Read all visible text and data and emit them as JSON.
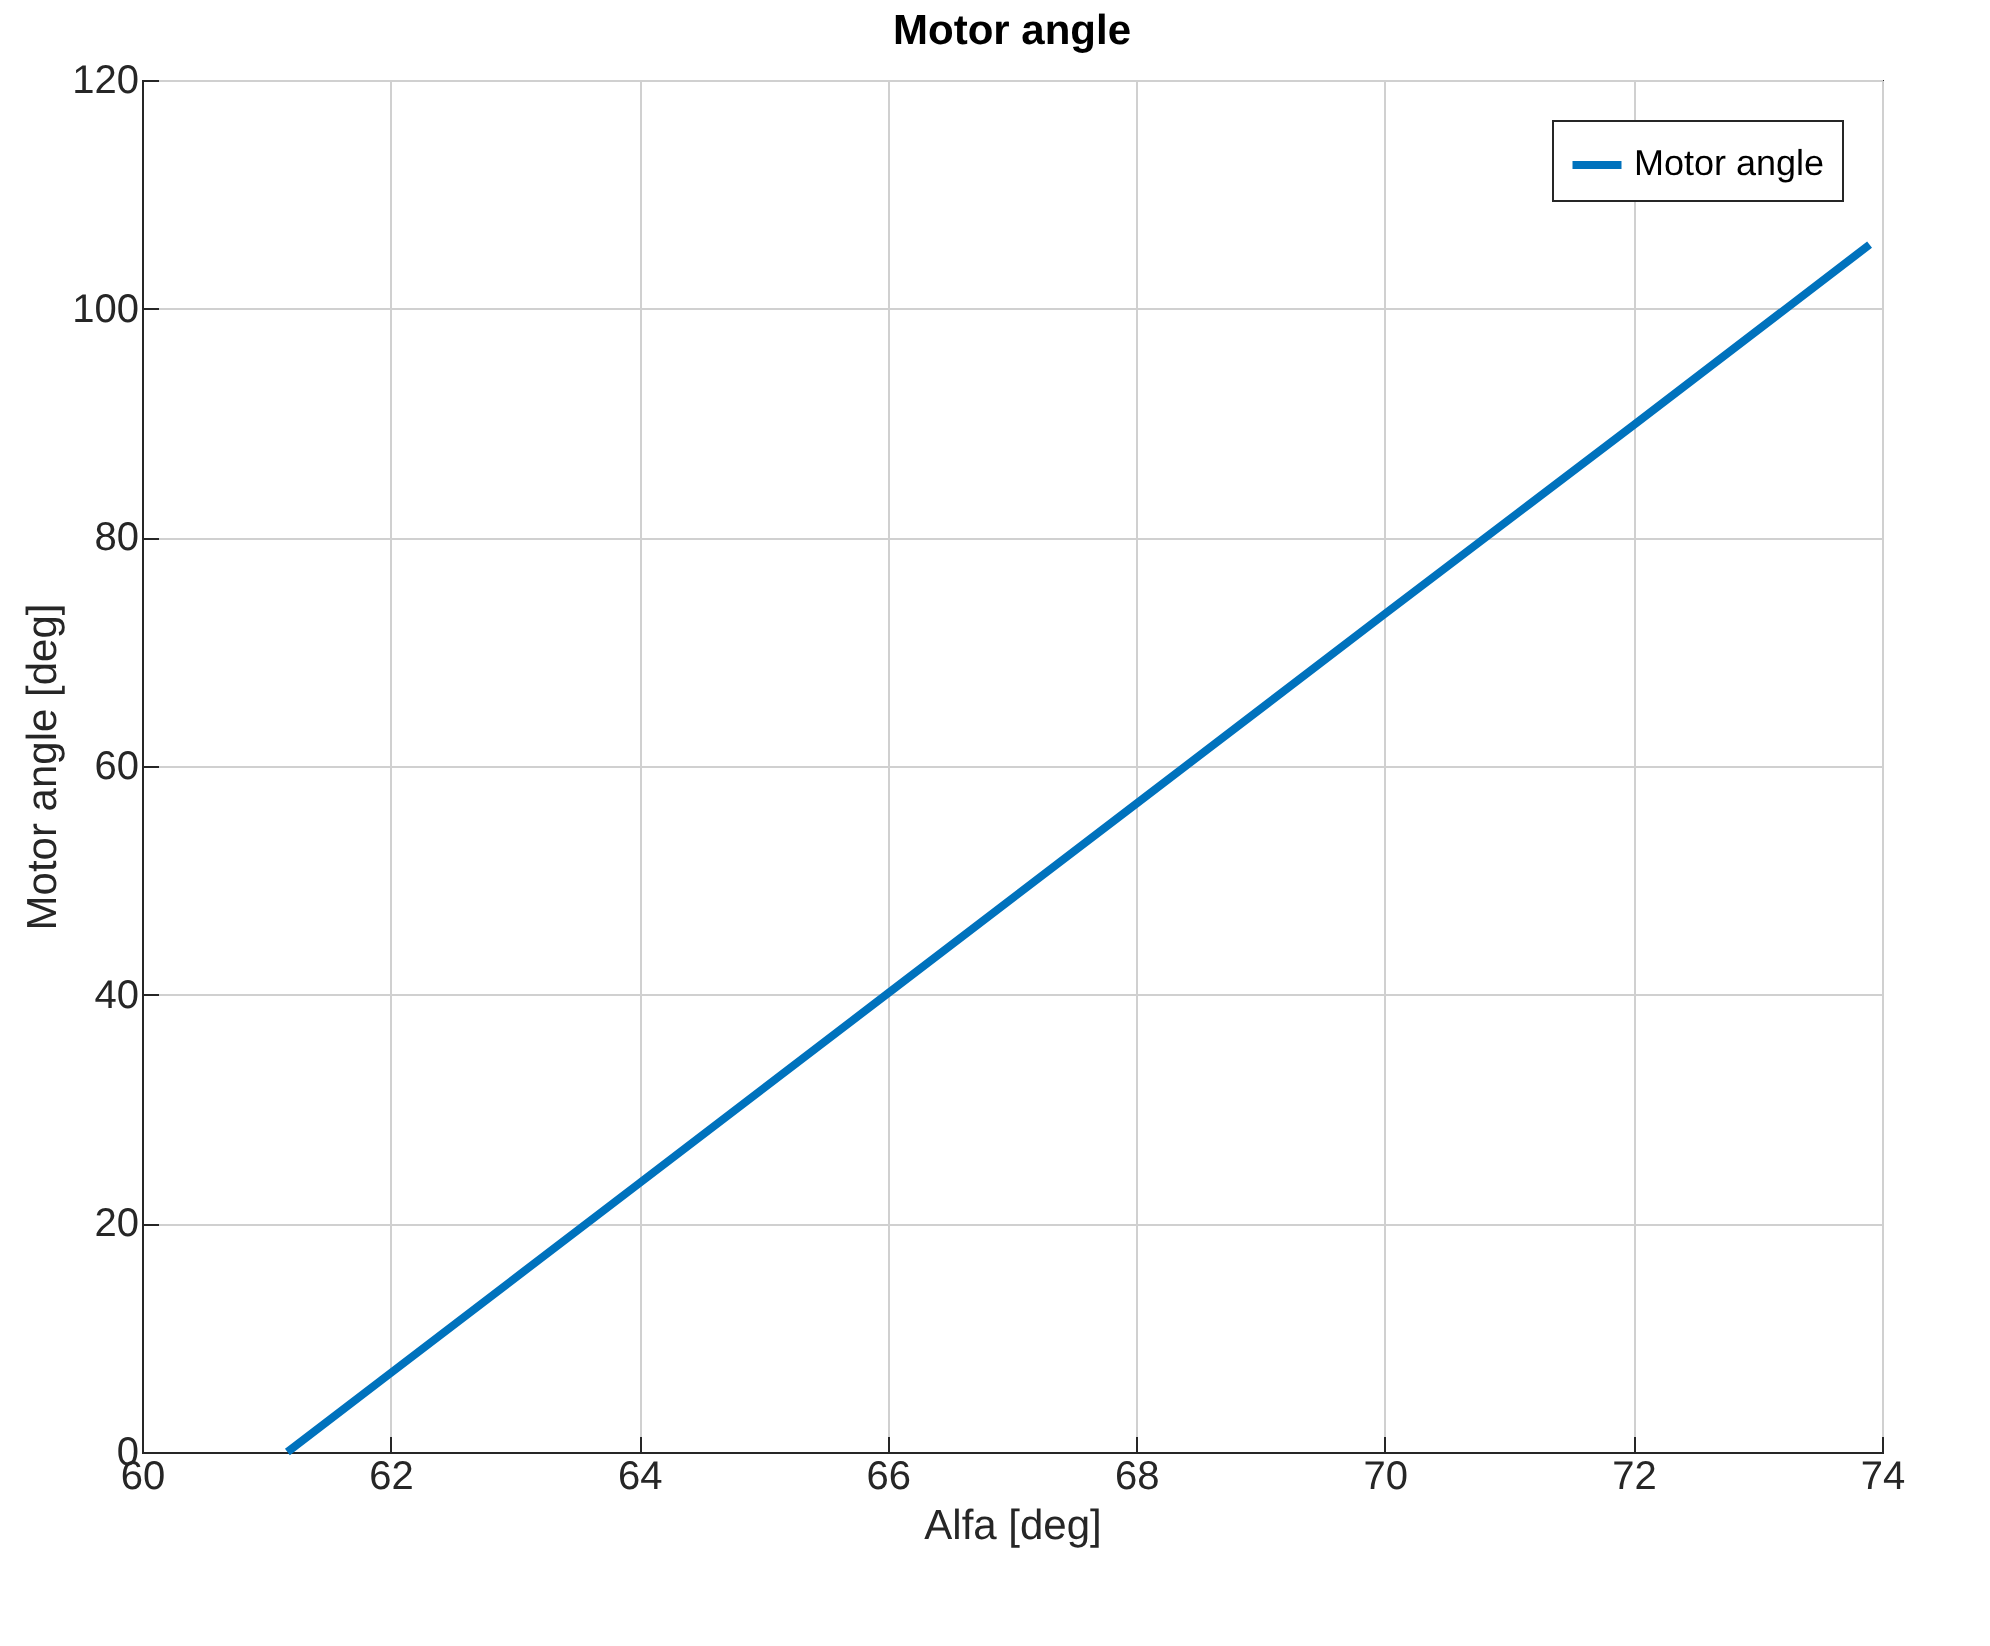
{
  "chart_data": {
    "type": "line",
    "title": "Motor angle",
    "xlabel": "Alfa [deg]",
    "ylabel": "Motor angle [deg]",
    "x": [
      61.17,
      62,
      64,
      66,
      68,
      70,
      72,
      73.9
    ],
    "series": [
      {
        "name": "Motor angle",
        "color": "#0072bd",
        "values": [
          0,
          6.9,
          23.5,
          40.1,
          56.7,
          73.3,
          89.8,
          105.6
        ]
      }
    ],
    "xlim": [
      60,
      74
    ],
    "xticks": [
      60,
      62,
      64,
      66,
      68,
      70,
      72,
      74
    ],
    "ylim": [
      0,
      120
    ],
    "yticks": [
      0,
      20,
      40,
      60,
      80,
      100,
      120
    ],
    "grid": true,
    "legend": "top right",
    "line_style": "solid"
  }
}
